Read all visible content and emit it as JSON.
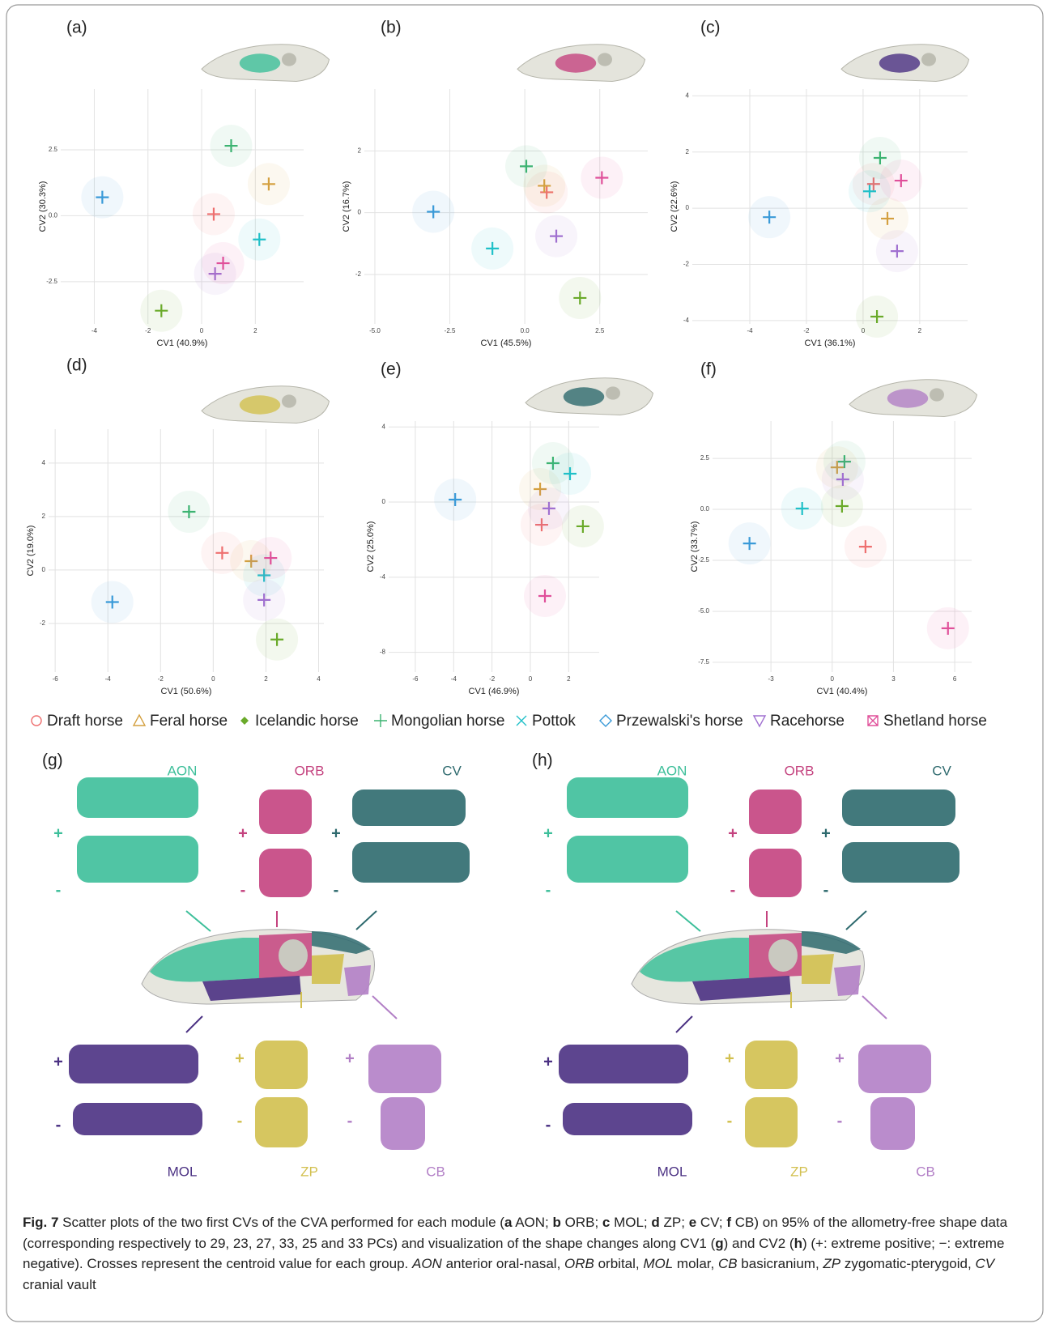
{
  "groups": [
    {
      "name": "Draft horse",
      "color": "#ee6f6f",
      "marker": "circle"
    },
    {
      "name": "Feral horse",
      "color": "#d4a040",
      "marker": "triangle"
    },
    {
      "name": "Icelandic horse",
      "color": "#6aaa2a",
      "marker": "filled-diamond"
    },
    {
      "name": "Mongolian horse",
      "color": "#3cb371",
      "marker": "plus"
    },
    {
      "name": "Pottok",
      "color": "#20c0c8",
      "marker": "cross"
    },
    {
      "name": "Przewalski's horse",
      "color": "#3a9ad8",
      "marker": "diamond"
    },
    {
      "name": "Racehorse",
      "color": "#a070d0",
      "marker": "triangle-down"
    },
    {
      "name": "Shetland horse",
      "color": "#e0509a",
      "marker": "boxed-cross"
    }
  ],
  "chart_data": [
    {
      "type": "scatter",
      "label": "(a)",
      "x_label": "CV1 (40.9%)",
      "y_label": "CV2 (30.3%)",
      "grid": true,
      "xlim": [
        -5.25,
        3.8
      ],
      "ylim": [
        -4.1,
        4.8
      ],
      "xticks": [
        -4,
        -2,
        0,
        2
      ],
      "yticks": [
        -2.5,
        {
          "value": 0,
          "label": "0.0"
        },
        2.5
      ],
      "series": [
        {
          "x": [
            0.45,
            2.5,
            -1.5,
            1.1,
            2.15,
            -3.7,
            0.5,
            0.8
          ],
          "values": [
            0.06,
            1.2,
            -3.6,
            2.65,
            -0.9,
            0.7,
            -2.2,
            -1.8
          ]
        }
      ]
    },
    {
      "type": "scatter",
      "label": "(b)",
      "x_label": "CV1 (45.5%)",
      "y_label": "CV2 (16.7%)",
      "grid": true,
      "xlim": [
        -5.35,
        4.1
      ],
      "ylim": [
        -3.6,
        4
      ],
      "xticks": [
        {
          "value": -5,
          "label": "-5.0"
        },
        -2.5,
        {
          "value": 0,
          "label": "0.0"
        },
        2.5
      ],
      "yticks": [
        -2,
        0,
        2
      ],
      "series": [
        {
          "x": [
            0.73,
            0.65,
            1.84,
            0.05,
            -1.08,
            -3.05,
            1.05,
            2.57
          ],
          "values": [
            0.66,
            0.87,
            -2.76,
            1.5,
            -1.16,
            0.03,
            -0.76,
            1.13
          ]
        }
      ]
    },
    {
      "type": "scatter",
      "label": "(c)",
      "x_label": "CV1 (36.1%)",
      "y_label": "CV2 (22.6%)",
      "grid": true,
      "xlim": [
        -6.03,
        3.69
      ],
      "ylim": [
        -4.12,
        4.24
      ],
      "xticks": [
        -4,
        -2,
        0,
        2
      ],
      "yticks": [
        -4,
        -2,
        0,
        2,
        4
      ],
      "series": [
        {
          "x": [
            0.37,
            0.86,
            0.49,
            0.6,
            0.23,
            -3.31,
            1.2,
            1.34
          ],
          "values": [
            0.86,
            -0.37,
            -3.86,
            1.79,
            0.6,
            -0.32,
            -1.53,
            0.98
          ]
        }
      ]
    },
    {
      "type": "scatter",
      "label": "(d)",
      "x_label": "CV1 (50.6%)",
      "y_label": "CV2 (19.0%)",
      "grid": true,
      "xlim": [
        -6.25,
        4.2
      ],
      "ylim": [
        -3.82,
        5.27
      ],
      "xticks": [
        -6,
        -4,
        -2,
        0,
        2,
        4
      ],
      "yticks": [
        -2,
        0,
        2,
        4
      ],
      "series": [
        {
          "x": [
            0.34,
            1.44,
            2.42,
            -0.92,
            1.93,
            -3.83,
            1.93,
            2.18
          ],
          "values": [
            0.64,
            0.33,
            -2.6,
            2.18,
            -0.2,
            -1.2,
            -1.12,
            0.45
          ]
        }
      ]
    },
    {
      "type": "scatter",
      "label": "(e)",
      "x_label": "CV1 (46.9%)",
      "y_label": "CV2 (25.0%)",
      "grid": true,
      "xlim": [
        -7.39,
        3.59
      ],
      "ylim": [
        -9.05,
        4.31
      ],
      "xticks": [
        -6,
        -4,
        -2,
        0,
        2
      ],
      "yticks": [
        -8,
        -4,
        0,
        4
      ],
      "series": [
        {
          "x": [
            0.59,
            0.51,
            2.74,
            1.18,
            2.07,
            -3.92,
            0.97,
            0.76
          ],
          "values": [
            -1.21,
            0.69,
            -1.29,
            2.07,
            1.51,
            0.13,
            -0.34,
            -5.0
          ]
        }
      ]
    },
    {
      "type": "scatter",
      "label": "(f)",
      "x_label": "CV1 (40.4%)",
      "y_label": "CV2 (33.7%)",
      "grid": true,
      "xlim": [
        -5.86,
        6.83
      ],
      "ylim": [
        -7.98,
        4.33
      ],
      "xticks": [
        -3,
        0,
        3,
        6
      ],
      "yticks": [
        -7.5,
        {
          "value": -5,
          "label": "-5.0"
        },
        -2.5,
        {
          "value": 0,
          "label": "0.0"
        },
        2.5
      ],
      "series": [
        {
          "x": [
            1.63,
            0.24,
            0.48,
            0.6,
            -1.47,
            -4.05,
            0.52,
            5.67
          ],
          "values": [
            -1.83,
            2.06,
            0.16,
            2.34,
            0.04,
            -1.67,
            1.47,
            -5.83
          ]
        }
      ]
    }
  ],
  "shape_panels": [
    {
      "label": "(g)"
    },
    {
      "label": "(h)"
    }
  ],
  "modules": [
    {
      "name": "AON",
      "color": "#3dbf9a"
    },
    {
      "name": "ORB",
      "color": "#c4437f"
    },
    {
      "name": "CV",
      "color": "#2e6a6e"
    },
    {
      "name": "MOL",
      "color": "#4b3183"
    },
    {
      "name": "ZP",
      "color": "#d2c04f"
    },
    {
      "name": "CB",
      "color": "#b27fc6"
    }
  ],
  "signs": [
    "+",
    "-"
  ],
  "caption": [
    {
      "text": "Fig. 7",
      "style": "b"
    },
    {
      "text": "  Scatter plots of the two first CVs of the CVA performed for each module (",
      "style": "n"
    },
    {
      "text": "a",
      "style": "b"
    },
    {
      "text": " AON; ",
      "style": "n"
    },
    {
      "text": "b",
      "style": "b"
    },
    {
      "text": " ORB; ",
      "style": "n"
    },
    {
      "text": "c",
      "style": "b"
    },
    {
      "text": " MOL; ",
      "style": "n"
    },
    {
      "text": "d",
      "style": "b"
    },
    {
      "text": " ZP; ",
      "style": "n"
    },
    {
      "text": "e",
      "style": "b"
    },
    {
      "text": " CV; ",
      "style": "n"
    },
    {
      "text": "f",
      "style": "b"
    },
    {
      "text": " CB) on 95% of the allometry-free shape data (corresponding respectively to 29, 23, 27, 33, 25 and 33 PCs) and visualization of the shape changes along CV1 (",
      "style": "n"
    },
    {
      "text": "g",
      "style": "b"
    },
    {
      "text": ") and CV2 (",
      "style": "n"
    },
    {
      "text": "h",
      "style": "b"
    },
    {
      "text": ") (+: extreme positive; −: extreme negative). Crosses represent the centroid value for each group. ",
      "style": "n"
    },
    {
      "text": "AON",
      "style": "i"
    },
    {
      "text": " anterior oral-nasal, ",
      "style": "n"
    },
    {
      "text": "ORB",
      "style": "i"
    },
    {
      "text": " orbital, ",
      "style": "n"
    },
    {
      "text": "MOL",
      "style": "i"
    },
    {
      "text": " molar, ",
      "style": "n"
    },
    {
      "text": "CB",
      "style": "i"
    },
    {
      "text": " basicranium, ",
      "style": "n"
    },
    {
      "text": "ZP",
      "style": "i"
    },
    {
      "text": " zygomatic-pterygoid, ",
      "style": "n"
    },
    {
      "text": "CV",
      "style": "i"
    },
    {
      "text": " cranial vault",
      "style": "n"
    }
  ]
}
